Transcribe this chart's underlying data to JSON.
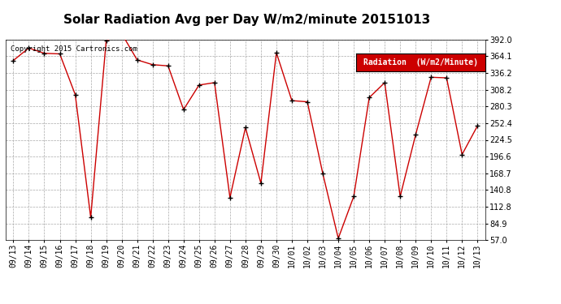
{
  "title": "Solar Radiation Avg per Day W/m2/minute 20151013",
  "copyright": "Copyright 2015 Cartronics.com",
  "legend_label": "Radiation  (W/m2/Minute)",
  "labels": [
    "09/13",
    "09/14",
    "09/15",
    "09/16",
    "09/17",
    "09/18",
    "09/19",
    "09/20",
    "09/21",
    "09/22",
    "09/23",
    "09/24",
    "09/25",
    "09/26",
    "09/27",
    "09/28",
    "09/29",
    "09/30",
    "10/01",
    "10/02",
    "10/03",
    "10/04",
    "10/05",
    "10/06",
    "10/07",
    "10/08",
    "10/09",
    "10/10",
    "10/11",
    "10/12",
    "10/13"
  ],
  "values": [
    357,
    378,
    369,
    368,
    300,
    95,
    390,
    402,
    358,
    350,
    348,
    275,
    316,
    320,
    128,
    245,
    152,
    370,
    290,
    288,
    168,
    60,
    130,
    295,
    320,
    130,
    233,
    329,
    328,
    200,
    248
  ],
  "line_color": "#cc0000",
  "marker_color": "#000000",
  "bg_color": "#ffffff",
  "plot_bg_color": "#ffffff",
  "grid_color": "#aaaaaa",
  "title_fontsize": 11,
  "tick_fontsize": 7,
  "copyright_fontsize": 6.5,
  "legend_bg": "#cc0000",
  "legend_text_color": "#ffffff",
  "legend_fontsize": 7,
  "ylim_min": 57.0,
  "ylim_max": 392.0,
  "yticks": [
    57.0,
    84.9,
    112.8,
    140.8,
    168.7,
    196.6,
    224.5,
    252.4,
    280.3,
    308.2,
    336.2,
    364.1,
    392.0
  ]
}
